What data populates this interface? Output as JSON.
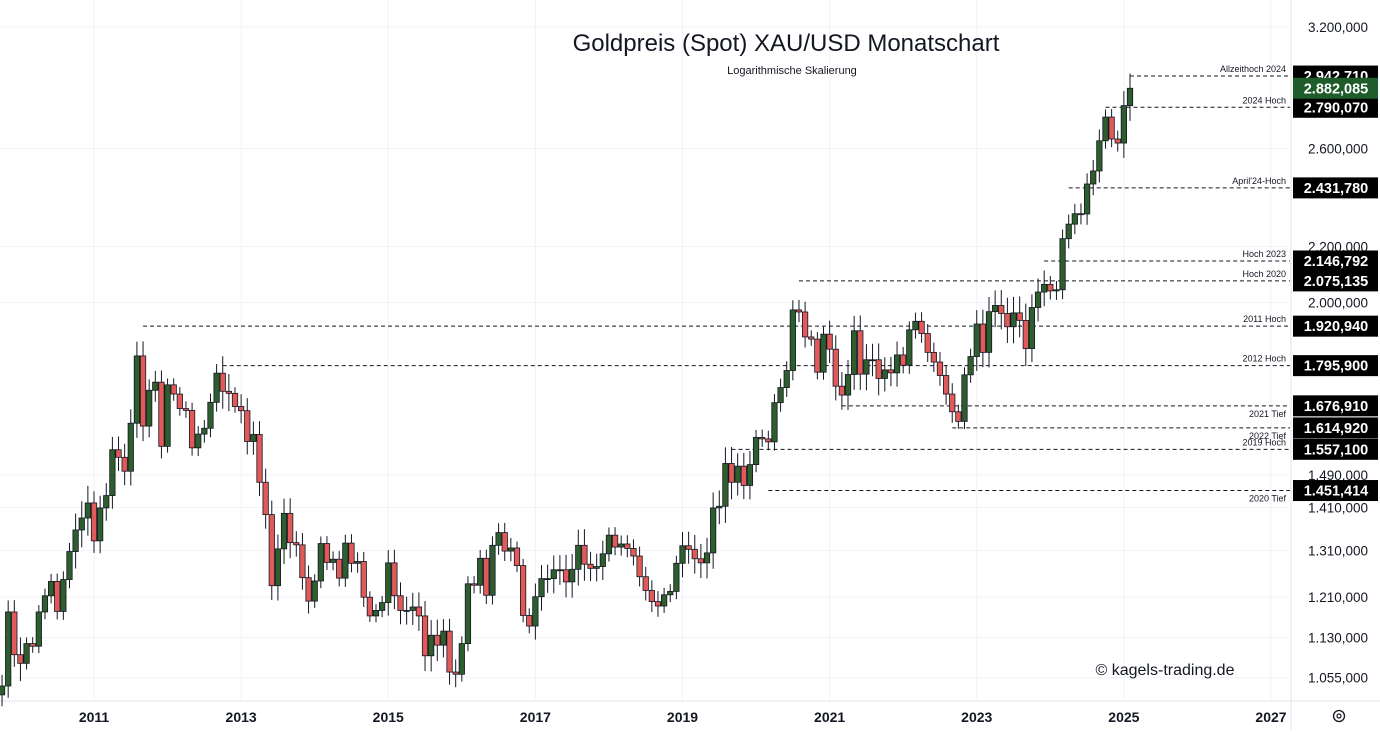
{
  "chart_data": {
    "type": "candlestick",
    "title": "Goldpreis (Spot) XAU/USD Monatschart",
    "subtitle": "Logarithmische Skalierung",
    "watermark": "© kagels-trading.de",
    "y_scale": "log",
    "ylim": [
      1040,
      3260
    ],
    "xlim": [
      "2009-10",
      "2027-03"
    ],
    "grid": true,
    "y_ticks": [
      {
        "value": 3200,
        "label": "3.200,000"
      },
      {
        "value": 2600,
        "label": "2.600,000"
      },
      {
        "value": 2200,
        "label": "2.200,000"
      },
      {
        "value": 2000,
        "label": "2.000,000"
      },
      {
        "value": 1490,
        "label": "1.490,000"
      },
      {
        "value": 1410,
        "label": "1.410,000"
      },
      {
        "value": 1310,
        "label": "1.310,000"
      },
      {
        "value": 1210,
        "label": "1.210,000"
      },
      {
        "value": 1130,
        "label": "1.130,000"
      },
      {
        "value": 1055,
        "label": "1.055,000"
      }
    ],
    "x_ticks": [
      "2011",
      "2013",
      "2015",
      "2017",
      "2019",
      "2021",
      "2023",
      "2025",
      "2027"
    ],
    "up_color": "#2e5e2e",
    "down_color": "#e05a5a",
    "level_color": "#131722",
    "current_price": {
      "value": 2882.085,
      "label": "2.882,085",
      "color": "#1e5c2a"
    },
    "levels": [
      {
        "name": "Allzeithoch 2024",
        "value": 2942.71,
        "label": "2.942,710",
        "start": "2025-02",
        "label_pos": "above"
      },
      {
        "name": "2024 Hoch",
        "value": 2790.07,
        "label": "2.790,070",
        "start": "2024-10",
        "label_pos": "above"
      },
      {
        "name": "April'24-Hoch",
        "value": 2431.78,
        "label": "2.431,780",
        "start": "2024-04",
        "label_pos": "above"
      },
      {
        "name": "Hoch 2023",
        "value": 2146.792,
        "label": "2.146,792",
        "start": "2023-12",
        "label_pos": "above"
      },
      {
        "name": "Hoch 2020",
        "value": 2075.135,
        "label": "2.075,135",
        "start": "2020-08",
        "label_pos": "above"
      },
      {
        "name": "2011 Hoch",
        "value": 1920.94,
        "label": "1.920,940",
        "start": "2011-09",
        "label_pos": "above"
      },
      {
        "name": "2012 Hoch",
        "value": 1795.9,
        "label": "1.795,900",
        "start": "2012-10",
        "label_pos": "above"
      },
      {
        "name": "2021 Tief",
        "value": 1676.91,
        "label": "1.676,910",
        "start": "2021-03",
        "label_pos": "below"
      },
      {
        "name": "2022 Tief",
        "value": 1614.92,
        "label": "1.614,920",
        "start": "2022-09",
        "label_pos": "below"
      },
      {
        "name": "2019 Hoch",
        "value": 1557.1,
        "label": "1.557,100",
        "start": "2019-09",
        "label_pos": "above"
      },
      {
        "name": "2020 Tief",
        "value": 1451.414,
        "label": "1.451,414",
        "start": "2020-03",
        "label_pos": "below"
      }
    ],
    "closes": [
      [
        "2009-10",
        1040
      ],
      [
        "2009-11",
        1180
      ],
      [
        "2009-12",
        1097
      ],
      [
        "2010-01",
        1081
      ],
      [
        "2010-02",
        1118
      ],
      [
        "2010-03",
        1113
      ],
      [
        "2010-04",
        1180
      ],
      [
        "2010-05",
        1213
      ],
      [
        "2010-06",
        1243
      ],
      [
        "2010-07",
        1181
      ],
      [
        "2010-08",
        1247
      ],
      [
        "2010-09",
        1308
      ],
      [
        "2010-10",
        1357
      ],
      [
        "2010-11",
        1385
      ],
      [
        "2010-12",
        1421
      ],
      [
        "2011-01",
        1332
      ],
      [
        "2011-02",
        1409
      ],
      [
        "2011-03",
        1439
      ],
      [
        "2011-04",
        1556
      ],
      [
        "2011-05",
        1536
      ],
      [
        "2011-06",
        1500
      ],
      [
        "2011-07",
        1628
      ],
      [
        "2011-08",
        1826
      ],
      [
        "2011-09",
        1620
      ],
      [
        "2011-10",
        1722
      ],
      [
        "2011-11",
        1746
      ],
      [
        "2011-12",
        1565
      ],
      [
        "2012-01",
        1738
      ],
      [
        "2012-02",
        1711
      ],
      [
        "2012-03",
        1669
      ],
      [
        "2012-04",
        1664
      ],
      [
        "2012-05",
        1561
      ],
      [
        "2012-06",
        1598
      ],
      [
        "2012-07",
        1614
      ],
      [
        "2012-08",
        1687
      ],
      [
        "2012-09",
        1773
      ],
      [
        "2012-10",
        1719
      ],
      [
        "2012-11",
        1713
      ],
      [
        "2012-12",
        1675
      ],
      [
        "2013-01",
        1663
      ],
      [
        "2013-02",
        1578
      ],
      [
        "2013-03",
        1597
      ],
      [
        "2013-04",
        1472
      ],
      [
        "2013-05",
        1393
      ],
      [
        "2013-06",
        1234
      ],
      [
        "2013-07",
        1314
      ],
      [
        "2013-08",
        1396
      ],
      [
        "2013-09",
        1328
      ],
      [
        "2013-10",
        1323
      ],
      [
        "2013-11",
        1251
      ],
      [
        "2013-12",
        1202
      ],
      [
        "2014-01",
        1244
      ],
      [
        "2014-02",
        1326
      ],
      [
        "2014-03",
        1284
      ],
      [
        "2014-04",
        1291
      ],
      [
        "2014-05",
        1250
      ],
      [
        "2014-06",
        1327
      ],
      [
        "2014-07",
        1282
      ],
      [
        "2014-08",
        1286
      ],
      [
        "2014-09",
        1210
      ],
      [
        "2014-10",
        1172
      ],
      [
        "2014-11",
        1183
      ],
      [
        "2014-12",
        1199
      ],
      [
        "2015-01",
        1283
      ],
      [
        "2015-02",
        1213
      ],
      [
        "2015-03",
        1183
      ],
      [
        "2015-04",
        1183
      ],
      [
        "2015-05",
        1190
      ],
      [
        "2015-06",
        1172
      ],
      [
        "2015-07",
        1095
      ],
      [
        "2015-08",
        1134
      ],
      [
        "2015-09",
        1115
      ],
      [
        "2015-10",
        1142
      ],
      [
        "2015-11",
        1065
      ],
      [
        "2015-12",
        1061
      ],
      [
        "2016-01",
        1118
      ],
      [
        "2016-02",
        1238
      ],
      [
        "2016-03",
        1235
      ],
      [
        "2016-04",
        1293
      ],
      [
        "2016-05",
        1214
      ],
      [
        "2016-06",
        1322
      ],
      [
        "2016-07",
        1351
      ],
      [
        "2016-08",
        1309
      ],
      [
        "2016-09",
        1316
      ],
      [
        "2016-10",
        1277
      ],
      [
        "2016-11",
        1173
      ],
      [
        "2016-12",
        1152
      ],
      [
        "2017-01",
        1211
      ],
      [
        "2017-02",
        1249
      ],
      [
        "2017-03",
        1249
      ],
      [
        "2017-04",
        1268
      ],
      [
        "2017-05",
        1268
      ],
      [
        "2017-06",
        1242
      ],
      [
        "2017-07",
        1269
      ],
      [
        "2017-08",
        1322
      ],
      [
        "2017-09",
        1280
      ],
      [
        "2017-10",
        1271
      ],
      [
        "2017-11",
        1275
      ],
      [
        "2017-12",
        1303
      ],
      [
        "2018-01",
        1345
      ],
      [
        "2018-02",
        1318
      ],
      [
        "2018-03",
        1325
      ],
      [
        "2018-04",
        1315
      ],
      [
        "2018-05",
        1298
      ],
      [
        "2018-06",
        1253
      ],
      [
        "2018-07",
        1224
      ],
      [
        "2018-08",
        1201
      ],
      [
        "2018-09",
        1192
      ],
      [
        "2018-10",
        1215
      ],
      [
        "2018-11",
        1222
      ],
      [
        "2018-12",
        1282
      ],
      [
        "2019-01",
        1321
      ],
      [
        "2019-02",
        1313
      ],
      [
        "2019-03",
        1292
      ],
      [
        "2019-04",
        1283
      ],
      [
        "2019-05",
        1305
      ],
      [
        "2019-06",
        1409
      ],
      [
        "2019-07",
        1413
      ],
      [
        "2019-08",
        1520
      ],
      [
        "2019-09",
        1472
      ],
      [
        "2019-10",
        1513
      ],
      [
        "2019-11",
        1464
      ],
      [
        "2019-12",
        1517
      ],
      [
        "2020-01",
        1589
      ],
      [
        "2020-02",
        1585
      ],
      [
        "2020-03",
        1577
      ],
      [
        "2020-04",
        1686
      ],
      [
        "2020-05",
        1730
      ],
      [
        "2020-06",
        1781
      ],
      [
        "2020-07",
        1975
      ],
      [
        "2020-08",
        1968
      ],
      [
        "2020-09",
        1886
      ],
      [
        "2020-10",
        1879
      ],
      [
        "2020-11",
        1776
      ],
      [
        "2020-12",
        1895
      ],
      [
        "2021-01",
        1847
      ],
      [
        "2021-02",
        1734
      ],
      [
        "2021-03",
        1708
      ],
      [
        "2021-04",
        1769
      ],
      [
        "2021-05",
        1906
      ],
      [
        "2021-06",
        1770
      ],
      [
        "2021-07",
        1814
      ],
      [
        "2021-08",
        1814
      ],
      [
        "2021-09",
        1757
      ],
      [
        "2021-10",
        1783
      ],
      [
        "2021-11",
        1774
      ],
      [
        "2021-12",
        1829
      ],
      [
        "2022-01",
        1797
      ],
      [
        "2022-02",
        1909
      ],
      [
        "2022-03",
        1937
      ],
      [
        "2022-04",
        1897
      ],
      [
        "2022-05",
        1837
      ],
      [
        "2022-06",
        1807
      ],
      [
        "2022-07",
        1766
      ],
      [
        "2022-08",
        1711
      ],
      [
        "2022-09",
        1660
      ],
      [
        "2022-10",
        1633
      ],
      [
        "2022-11",
        1768
      ],
      [
        "2022-12",
        1824
      ],
      [
        "2023-01",
        1928
      ],
      [
        "2023-02",
        1837
      ],
      [
        "2023-03",
        1969
      ],
      [
        "2023-04",
        1990
      ],
      [
        "2023-05",
        1963
      ],
      [
        "2023-06",
        1919
      ],
      [
        "2023-07",
        1965
      ],
      [
        "2023-08",
        1940
      ],
      [
        "2023-09",
        1849
      ],
      [
        "2023-10",
        1983
      ],
      [
        "2023-11",
        2036
      ],
      [
        "2023-12",
        2063
      ],
      [
        "2024-01",
        2040
      ],
      [
        "2024-02",
        2044
      ],
      [
        "2024-03",
        2230
      ],
      [
        "2024-04",
        2286
      ],
      [
        "2024-05",
        2327
      ],
      [
        "2024-06",
        2326
      ],
      [
        "2024-07",
        2448
      ],
      [
        "2024-08",
        2503
      ],
      [
        "2024-09",
        2635
      ],
      [
        "2024-10",
        2744
      ],
      [
        "2024-11",
        2643
      ],
      [
        "2024-12",
        2625
      ],
      [
        "2025-01",
        2798
      ],
      [
        "2025-02",
        2882
      ]
    ]
  }
}
